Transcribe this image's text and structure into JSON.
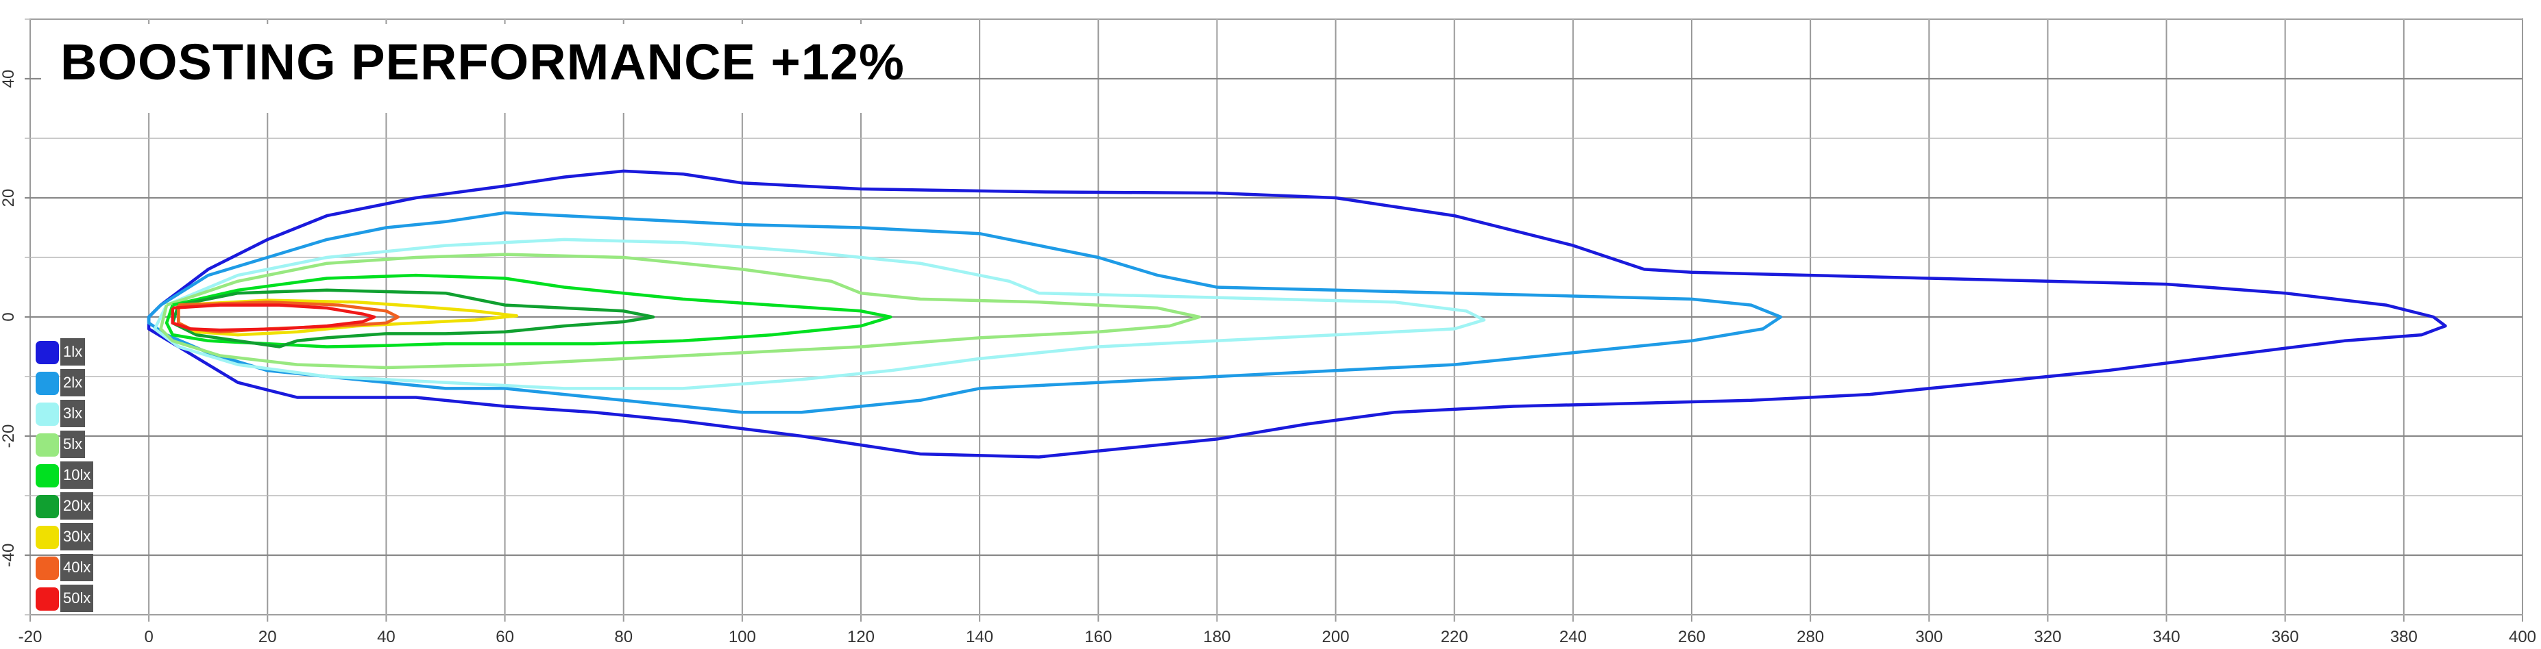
{
  "chart_data": {
    "type": "line",
    "title": "BOOSTING PERFORMANCE +12%",
    "xlabel": "",
    "ylabel": "",
    "xlim": [
      -20,
      400
    ],
    "ylim": [
      -50,
      50
    ],
    "x_ticks": [
      "-20",
      "0",
      "20",
      "40",
      "60",
      "80",
      "100",
      "120",
      "140",
      "160",
      "180",
      "200",
      "220",
      "240",
      "260",
      "280",
      "300",
      "320",
      "340",
      "360",
      "380",
      "400"
    ],
    "y_ticks": [
      "40",
      "20",
      "0",
      "-20",
      "-40"
    ],
    "grid": true,
    "legend_position": "left",
    "series": [
      {
        "name": "1lx",
        "color": "#1a1adc",
        "points": [
          [
            2,
            2
          ],
          [
            10,
            8
          ],
          [
            20,
            13
          ],
          [
            30,
            17
          ],
          [
            45,
            20
          ],
          [
            60,
            22
          ],
          [
            70,
            23.5
          ],
          [
            80,
            24.5
          ],
          [
            90,
            24
          ],
          [
            100,
            22.5
          ],
          [
            120,
            21.5
          ],
          [
            150,
            21
          ],
          [
            180,
            20.8
          ],
          [
            200,
            20
          ],
          [
            220,
            17
          ],
          [
            240,
            12
          ],
          [
            252,
            8
          ],
          [
            260,
            7.5
          ],
          [
            280,
            7
          ],
          [
            300,
            6.5
          ],
          [
            320,
            6
          ],
          [
            340,
            5.5
          ],
          [
            360,
            4
          ],
          [
            377,
            2
          ],
          [
            385,
            0
          ],
          [
            387,
            -1.5
          ],
          [
            383,
            -3
          ],
          [
            370,
            -4
          ],
          [
            350,
            -6.5
          ],
          [
            330,
            -9
          ],
          [
            310,
            -11
          ],
          [
            290,
            -13
          ],
          [
            270,
            -14
          ],
          [
            250,
            -14.5
          ],
          [
            230,
            -15
          ],
          [
            210,
            -16
          ],
          [
            195,
            -18
          ],
          [
            180,
            -20.5
          ],
          [
            165,
            -22
          ],
          [
            150,
            -23.5
          ],
          [
            130,
            -23
          ],
          [
            110,
            -20
          ],
          [
            90,
            -17.5
          ],
          [
            75,
            -16
          ],
          [
            60,
            -15
          ],
          [
            45,
            -13.5
          ],
          [
            35,
            -13.5
          ],
          [
            25,
            -13.5
          ],
          [
            15,
            -11
          ],
          [
            5,
            -5
          ],
          [
            0,
            -2
          ],
          [
            0,
            0
          ],
          [
            2,
            2
          ]
        ]
      },
      {
        "name": "2lx",
        "color": "#1e9be6",
        "points": [
          [
            2,
            2
          ],
          [
            10,
            7
          ],
          [
            20,
            10
          ],
          [
            30,
            13
          ],
          [
            40,
            15
          ],
          [
            50,
            16
          ],
          [
            60,
            17.5
          ],
          [
            70,
            17
          ],
          [
            80,
            16.5
          ],
          [
            100,
            15.5
          ],
          [
            120,
            15
          ],
          [
            140,
            14
          ],
          [
            150,
            12
          ],
          [
            160,
            10
          ],
          [
            170,
            7
          ],
          [
            180,
            5
          ],
          [
            200,
            4.5
          ],
          [
            220,
            4
          ],
          [
            240,
            3.5
          ],
          [
            260,
            3
          ],
          [
            270,
            2
          ],
          [
            275,
            0
          ],
          [
            272,
            -2
          ],
          [
            260,
            -4
          ],
          [
            240,
            -6
          ],
          [
            220,
            -8
          ],
          [
            200,
            -9
          ],
          [
            180,
            -10
          ],
          [
            160,
            -11
          ],
          [
            140,
            -12
          ],
          [
            130,
            -14
          ],
          [
            120,
            -15
          ],
          [
            110,
            -16
          ],
          [
            100,
            -16
          ],
          [
            90,
            -15
          ],
          [
            80,
            -14
          ],
          [
            70,
            -13
          ],
          [
            60,
            -12
          ],
          [
            50,
            -12
          ],
          [
            40,
            -11
          ],
          [
            30,
            -10
          ],
          [
            20,
            -9
          ],
          [
            10,
            -6
          ],
          [
            3,
            -3
          ],
          [
            0,
            -1
          ],
          [
            0,
            0
          ],
          [
            2,
            2
          ]
        ]
      },
      {
        "name": "3lx",
        "color": "#a0f4f4",
        "points": [
          [
            3,
            2
          ],
          [
            15,
            7
          ],
          [
            30,
            10
          ],
          [
            50,
            12
          ],
          [
            70,
            13
          ],
          [
            90,
            12.5
          ],
          [
            110,
            11
          ],
          [
            130,
            9
          ],
          [
            145,
            6
          ],
          [
            150,
            4
          ],
          [
            170,
            3.5
          ],
          [
            190,
            3
          ],
          [
            210,
            2.5
          ],
          [
            222,
            1
          ],
          [
            225,
            -0.5
          ],
          [
            220,
            -2
          ],
          [
            200,
            -3
          ],
          [
            180,
            -4
          ],
          [
            160,
            -5
          ],
          [
            150,
            -6
          ],
          [
            140,
            -7
          ],
          [
            125,
            -9
          ],
          [
            110,
            -10.5
          ],
          [
            90,
            -12
          ],
          [
            70,
            -12
          ],
          [
            50,
            -11
          ],
          [
            30,
            -10
          ],
          [
            15,
            -8
          ],
          [
            5,
            -5
          ],
          [
            1,
            -2
          ],
          [
            3,
            2
          ]
        ]
      },
      {
        "name": "5lx",
        "color": "#98e880",
        "points": [
          [
            3,
            2
          ],
          [
            15,
            6
          ],
          [
            30,
            9
          ],
          [
            45,
            10
          ],
          [
            60,
            10.5
          ],
          [
            80,
            10
          ],
          [
            100,
            8
          ],
          [
            115,
            6
          ],
          [
            120,
            4
          ],
          [
            130,
            3
          ],
          [
            150,
            2.5
          ],
          [
            170,
            1.5
          ],
          [
            177,
            0
          ],
          [
            172,
            -1.5
          ],
          [
            160,
            -2.5
          ],
          [
            140,
            -3.5
          ],
          [
            120,
            -5
          ],
          [
            100,
            -6
          ],
          [
            80,
            -7
          ],
          [
            60,
            -8
          ],
          [
            40,
            -8.5
          ],
          [
            25,
            -8
          ],
          [
            12,
            -6.5
          ],
          [
            4,
            -4
          ],
          [
            2,
            -2
          ],
          [
            3,
            2
          ]
        ]
      },
      {
        "name": "10lx",
        "color": "#00e020",
        "points": [
          [
            4,
            2
          ],
          [
            15,
            4.5
          ],
          [
            30,
            6.5
          ],
          [
            45,
            7
          ],
          [
            60,
            6.5
          ],
          [
            70,
            5
          ],
          [
            80,
            4
          ],
          [
            90,
            3
          ],
          [
            105,
            2
          ],
          [
            120,
            1
          ],
          [
            125,
            0
          ],
          [
            120,
            -1.5
          ],
          [
            105,
            -3
          ],
          [
            90,
            -4
          ],
          [
            75,
            -4.5
          ],
          [
            60,
            -4.5
          ],
          [
            50,
            -4.5
          ],
          [
            40,
            -4.8
          ],
          [
            30,
            -5
          ],
          [
            20,
            -4.5
          ],
          [
            10,
            -4
          ],
          [
            4,
            -3
          ],
          [
            3,
            -1
          ],
          [
            4,
            2
          ]
        ]
      },
      {
        "name": "20lx",
        "color": "#10a030",
        "points": [
          [
            5,
            2
          ],
          [
            15,
            4
          ],
          [
            30,
            4.5
          ],
          [
            50,
            4
          ],
          [
            60,
            2
          ],
          [
            70,
            1.5
          ],
          [
            80,
            1
          ],
          [
            85,
            0
          ],
          [
            80,
            -0.8
          ],
          [
            70,
            -1.5
          ],
          [
            60,
            -2.5
          ],
          [
            50,
            -2.8
          ],
          [
            40,
            -2.8
          ],
          [
            30,
            -3.5
          ],
          [
            25,
            -4
          ],
          [
            22,
            -5
          ],
          [
            15,
            -4
          ],
          [
            8,
            -3
          ],
          [
            4,
            -1
          ],
          [
            5,
            2
          ]
        ]
      },
      {
        "name": "30lx",
        "color": "#f0e000",
        "points": [
          [
            5,
            2
          ],
          [
            20,
            2.8
          ],
          [
            35,
            2.5
          ],
          [
            45,
            1.8
          ],
          [
            55,
            1
          ],
          [
            62,
            0.2
          ],
          [
            55,
            -0.5
          ],
          [
            45,
            -1
          ],
          [
            35,
            -1.5
          ],
          [
            25,
            -2.5
          ],
          [
            15,
            -3
          ],
          [
            8,
            -2.5
          ],
          [
            5,
            -1
          ],
          [
            5,
            2
          ]
        ]
      },
      {
        "name": "40lx",
        "color": "#f06020",
        "points": [
          [
            5,
            2
          ],
          [
            20,
            2.5
          ],
          [
            32,
            2
          ],
          [
            40,
            1
          ],
          [
            42,
            0
          ],
          [
            40,
            -1
          ],
          [
            32,
            -1.5
          ],
          [
            20,
            -2
          ],
          [
            12,
            -2.5
          ],
          [
            7,
            -2
          ],
          [
            5,
            -1
          ],
          [
            5,
            2
          ]
        ]
      },
      {
        "name": "50lx",
        "color": "#f01818",
        "points": [
          [
            4,
            1.5
          ],
          [
            12,
            2
          ],
          [
            22,
            2
          ],
          [
            30,
            1.5
          ],
          [
            36,
            0.5
          ],
          [
            38,
            0
          ],
          [
            36,
            -0.8
          ],
          [
            30,
            -1.5
          ],
          [
            22,
            -2
          ],
          [
            12,
            -2.2
          ],
          [
            7,
            -2
          ],
          [
            4,
            -1
          ],
          [
            4,
            1.5
          ]
        ]
      }
    ]
  }
}
